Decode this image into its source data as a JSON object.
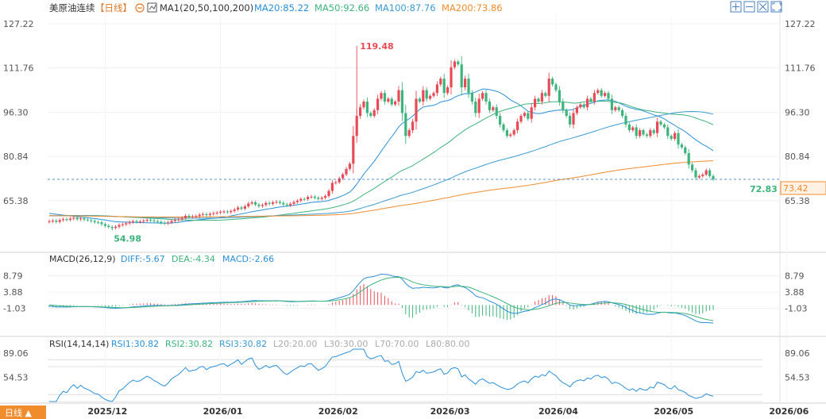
{
  "header": {
    "symbol": "美原油连续",
    "period": "【日线】",
    "ma_title": "MA1(20,50,100,200)",
    "ma20": "MA20:85.22",
    "ma50": "MA50:92.66",
    "ma100": "MA100:87.76",
    "ma200": "MA200:73.86"
  },
  "toolbar_icons": [
    "zoom-in-icon",
    "zoom-out-icon",
    "fit-icon",
    "fullscreen-icon"
  ],
  "price_axis": {
    "ticks": [
      "127.22",
      "111.76",
      "96.30",
      "80.84",
      "65.38"
    ],
    "values": [
      127.22,
      111.76,
      96.3,
      80.84,
      65.38
    ]
  },
  "price_labels": {
    "high": "119.48",
    "low": "54.98",
    "last": "72.83",
    "ma200_tag": "73.42"
  },
  "macd": {
    "title": "MACD(26,12,9)",
    "diff": "DIFF:-5.67",
    "dea": "DEA:-4.34",
    "macd": "MACD:-2.66",
    "ticks": [
      "8.79",
      "3.88",
      "-1.03"
    ],
    "tick_values": [
      8.79,
      3.88,
      -1.03
    ]
  },
  "rsi": {
    "title": "RSI(14,14,14)",
    "rsi1": "RSI1:30.82",
    "rsi2": "RSI2:30.82",
    "rsi3": "RSI3:30.82",
    "l20": "L20:20.00",
    "l30": "L30:30.00",
    "l70": "L70:70.00",
    "l80": "L80:80.00",
    "ticks": [
      "89.06",
      "54.53"
    ],
    "tick_values": [
      89.06,
      54.53
    ]
  },
  "x_axis": {
    "labels": [
      "2025/12",
      "2026/01",
      "2026/02",
      "2026/03",
      "2026/04",
      "2026/05",
      "2026/06"
    ],
    "index": [
      16,
      49,
      82,
      114,
      145,
      178,
      211
    ]
  },
  "footer": {
    "period_button": "日线 ▲"
  },
  "colors": {
    "up": "#e84b55",
    "down": "#3cb47b",
    "ma20": "#2a8fd8",
    "ma50": "#3cb47b",
    "ma100": "#3a9bd0",
    "ma200": "#f08c2c",
    "axis_text": "#555555",
    "grid": "#f0f0f0"
  },
  "chart_data": {
    "type": "candlestick",
    "series_name": "美原油连续",
    "close": [
      58.2,
      58.4,
      58.0,
      58.6,
      58.9,
      58.7,
      59.1,
      59.4,
      58.9,
      59.2,
      58.8,
      58.6,
      58.3,
      57.9,
      57.8,
      57.2,
      56.6,
      56.2,
      55.9,
      56.3,
      56.9,
      57.1,
      57.5,
      57.9,
      58.2,
      58.0,
      58.1,
      58.4,
      58.7,
      58.5,
      58.2,
      58.0,
      57.7,
      57.5,
      57.8,
      58.3,
      58.6,
      58.9,
      59.4,
      60.1,
      59.7,
      59.9,
      60.0,
      60.5,
      60.7,
      60.4,
      60.8,
      61.0,
      61.2,
      61.5,
      61.6,
      61.4,
      61.8,
      62.3,
      63.0,
      62.6,
      63.4,
      64.4,
      64.8,
      64.0,
      63.5,
      63.9,
      64.6,
      64.3,
      64.8,
      65.0,
      64.6,
      64.1,
      63.8,
      64.3,
      64.9,
      65.4,
      66.0,
      65.9,
      66.7,
      66.8,
      66.4,
      66.0,
      66.4,
      67.0,
      68.8,
      71.6,
      71.8,
      73.2,
      74.6,
      76.5,
      78.3,
      88.0,
      95.0,
      98.0,
      100.0,
      96.0,
      95.0,
      97.0,
      101.0,
      103.0,
      100.0,
      101.0,
      99.0,
      100.0,
      104.0,
      96.0,
      88.0,
      90.0,
      93.0,
      101.0,
      100.0,
      104.0,
      101.0,
      102.0,
      103.0,
      106.0,
      108.0,
      103.0,
      105.0,
      112.0,
      114.0,
      113.0,
      105.0,
      108.0,
      103.0,
      100.0,
      96.0,
      101.0,
      103.0,
      100.0,
      97.0,
      98.0,
      95.0,
      92.0,
      90.0,
      88.0,
      88.5,
      90.0,
      93.0,
      95.0,
      96.0,
      94.0,
      98.0,
      101.0,
      100.0,
      103.0,
      102.0,
      108.0,
      106.0,
      104.0,
      100.0,
      97.0,
      95.0,
      92.0,
      96.0,
      98.0,
      99.0,
      98.0,
      101.0,
      100.0,
      103.0,
      104.0,
      102.0,
      103.0,
      101.0,
      97.0,
      98.0,
      97.0,
      95.0,
      92.0,
      90.0,
      91.0,
      88.0,
      90.0,
      88.5,
      88.0,
      90.0,
      89.0,
      93.0,
      92.0,
      91.0,
      88.0,
      87.0,
      89.0,
      85.0,
      84.0,
      82.0,
      78.0,
      76.0,
      73.5,
      74.0,
      74.5,
      76.0,
      74.0,
      72.83
    ],
    "open": [
      58.0,
      58.2,
      58.4,
      58.0,
      58.6,
      58.9,
      58.7,
      59.1,
      59.4,
      58.9,
      59.2,
      58.8,
      58.6,
      58.3,
      57.9,
      57.8,
      57.2,
      56.6,
      56.2,
      55.9,
      56.3,
      56.9,
      57.1,
      57.5,
      57.9,
      58.2,
      58.0,
      58.1,
      58.4,
      58.7,
      58.5,
      58.2,
      58.0,
      57.7,
      57.5,
      57.8,
      58.3,
      58.6,
      58.9,
      59.4,
      60.1,
      59.7,
      59.9,
      60.0,
      60.5,
      60.7,
      60.4,
      60.8,
      61.0,
      61.2,
      61.5,
      61.6,
      61.4,
      61.8,
      62.3,
      63.0,
      62.6,
      63.4,
      64.4,
      64.8,
      64.0,
      63.5,
      63.9,
      64.6,
      64.3,
      64.8,
      65.0,
      64.6,
      64.1,
      63.8,
      64.3,
      64.9,
      65.4,
      66.0,
      65.9,
      66.7,
      66.8,
      66.4,
      66.0,
      66.4,
      67.0,
      68.8,
      71.6,
      71.8,
      73.2,
      74.6,
      76.5,
      78.3,
      88.0,
      95.0,
      98.0,
      100.0,
      96.0,
      95.0,
      97.0,
      101.0,
      103.0,
      100.0,
      101.0,
      99.0,
      100.0,
      104.0,
      96.0,
      88.0,
      90.0,
      93.0,
      101.0,
      100.0,
      104.0,
      101.0,
      102.0,
      103.0,
      106.0,
      108.0,
      103.0,
      105.0,
      112.0,
      114.0,
      113.0,
      105.0,
      108.0,
      103.0,
      100.0,
      96.0,
      101.0,
      103.0,
      100.0,
      97.0,
      98.0,
      95.0,
      92.0,
      90.0,
      88.0,
      88.5,
      90.0,
      93.0,
      95.0,
      96.0,
      94.0,
      98.0,
      101.0,
      100.0,
      103.0,
      102.0,
      108.0,
      106.0,
      104.0,
      100.0,
      97.0,
      95.0,
      92.0,
      96.0,
      98.0,
      99.0,
      98.0,
      101.0,
      100.0,
      103.0,
      104.0,
      102.0,
      103.0,
      101.0,
      97.0,
      98.0,
      97.0,
      95.0,
      92.0,
      90.0,
      91.0,
      88.0,
      90.0,
      88.5,
      88.0,
      90.0,
      89.0,
      93.0,
      92.0,
      91.0,
      88.0,
      87.0,
      89.0,
      85.0,
      84.0,
      82.0,
      78.0,
      76.0,
      73.5,
      74.0,
      74.5,
      76.0,
      74.0
    ],
    "high_value": 119.48,
    "low_value": 54.98,
    "last_value": 72.83,
    "y_range": [
      49.0,
      130.5
    ],
    "macd_range": [
      -8.5,
      12.0
    ],
    "rsi_range": [
      20,
      95
    ],
    "rsi_levels": [
      20,
      30,
      70,
      80
    ]
  }
}
